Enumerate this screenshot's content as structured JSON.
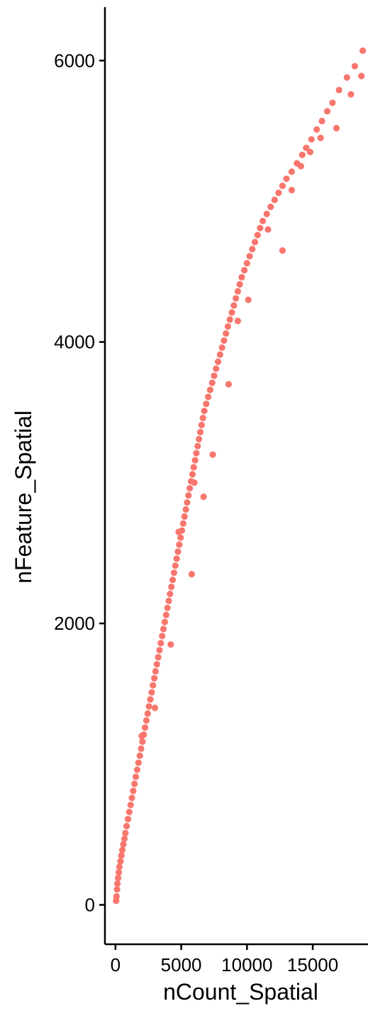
{
  "chart_data": {
    "type": "scatter",
    "title": "",
    "xlabel": "nCount_Spatial",
    "ylabel": "nFeature_Spatial",
    "xlim": [
      -800,
      19200
    ],
    "ylim": [
      -280,
      6380
    ],
    "x_ticks": [
      0,
      5000,
      10000,
      15000
    ],
    "x_tick_labels": [
      "0",
      "5000",
      "10000",
      "15000"
    ],
    "y_ticks": [
      0,
      2000,
      4000,
      6000
    ],
    "y_tick_labels": [
      "0",
      "2000",
      "4000",
      "6000"
    ],
    "grid": false,
    "legend": "none",
    "point_color": "#F8766D",
    "series": [
      {
        "points": [
          [
            50,
            30
          ],
          [
            80,
            60
          ],
          [
            120,
            110
          ],
          [
            150,
            150
          ],
          [
            200,
            190
          ],
          [
            250,
            230
          ],
          [
            300,
            270
          ],
          [
            380,
            310
          ],
          [
            450,
            350
          ],
          [
            520,
            390
          ],
          [
            600,
            430
          ],
          [
            680,
            470
          ],
          [
            760,
            510
          ],
          [
            850,
            560
          ],
          [
            950,
            610
          ],
          [
            1050,
            660
          ],
          [
            1150,
            710
          ],
          [
            1250,
            760
          ],
          [
            1350,
            810
          ],
          [
            1450,
            860
          ],
          [
            1550,
            910
          ],
          [
            1650,
            960
          ],
          [
            1750,
            1010
          ],
          [
            1850,
            1060
          ],
          [
            1950,
            1110
          ],
          [
            2050,
            1160
          ],
          [
            2150,
            1210
          ],
          [
            2250,
            1260
          ],
          [
            2350,
            1310
          ],
          [
            2450,
            1360
          ],
          [
            2550,
            1410
          ],
          [
            2650,
            1460
          ],
          [
            2750,
            1510
          ],
          [
            2850,
            1560
          ],
          [
            2950,
            1610
          ],
          [
            3050,
            1660
          ],
          [
            3150,
            1710
          ],
          [
            3250,
            1760
          ],
          [
            3350,
            1810
          ],
          [
            3450,
            1860
          ],
          [
            3550,
            1910
          ],
          [
            3650,
            1960
          ],
          [
            3750,
            2010
          ],
          [
            3850,
            2060
          ],
          [
            3950,
            2110
          ],
          [
            4050,
            2160
          ],
          [
            4150,
            2210
          ],
          [
            4250,
            2260
          ],
          [
            4350,
            2310
          ],
          [
            4450,
            2360
          ],
          [
            4550,
            2410
          ],
          [
            4650,
            2460
          ],
          [
            4750,
            2510
          ],
          [
            4850,
            2560
          ],
          [
            4950,
            2610
          ],
          [
            5050,
            2660
          ],
          [
            5150,
            2710
          ],
          [
            5250,
            2760
          ],
          [
            5350,
            2810
          ],
          [
            5450,
            2860
          ],
          [
            5550,
            2910
          ],
          [
            5650,
            2960
          ],
          [
            5750,
            3010
          ],
          [
            5850,
            3060
          ],
          [
            5950,
            3110
          ],
          [
            6050,
            3160
          ],
          [
            6150,
            3210
          ],
          [
            6250,
            3260
          ],
          [
            6350,
            3310
          ],
          [
            6450,
            3360
          ],
          [
            6550,
            3410
          ],
          [
            6650,
            3460
          ],
          [
            6750,
            3510
          ],
          [
            6900,
            3560
          ],
          [
            7050,
            3610
          ],
          [
            7200,
            3660
          ],
          [
            7350,
            3710
          ],
          [
            7500,
            3760
          ],
          [
            7650,
            3810
          ],
          [
            7800,
            3860
          ],
          [
            7950,
            3910
          ],
          [
            8100,
            3960
          ],
          [
            8250,
            4010
          ],
          [
            8400,
            4060
          ],
          [
            8550,
            4110
          ],
          [
            8700,
            4160
          ],
          [
            8850,
            4210
          ],
          [
            9000,
            4260
          ],
          [
            9150,
            4310
          ],
          [
            9300,
            4360
          ],
          [
            9450,
            4410
          ],
          [
            9600,
            4460
          ],
          [
            9800,
            4510
          ],
          [
            10000,
            4560
          ],
          [
            10200,
            4610
          ],
          [
            10400,
            4660
          ],
          [
            10600,
            4710
          ],
          [
            10800,
            4760
          ],
          [
            11000,
            4810
          ],
          [
            11200,
            4860
          ],
          [
            11500,
            4910
          ],
          [
            11800,
            4960
          ],
          [
            12100,
            5010
          ],
          [
            12400,
            5060
          ],
          [
            12700,
            5110
          ],
          [
            13000,
            5160
          ],
          [
            13400,
            5210
          ],
          [
            13800,
            5270
          ],
          [
            14200,
            5330
          ],
          [
            14500,
            5380
          ],
          [
            14900,
            5440
          ],
          [
            15300,
            5510
          ],
          [
            15700,
            5570
          ],
          [
            16100,
            5640
          ],
          [
            16500,
            5700
          ],
          [
            17000,
            5790
          ],
          [
            17600,
            5880
          ],
          [
            18200,
            5960
          ],
          [
            18800,
            6070
          ],
          [
            3000,
            1400
          ],
          [
            4200,
            1850
          ],
          [
            5800,
            2350
          ],
          [
            6700,
            2900
          ],
          [
            7400,
            3200
          ],
          [
            8600,
            3700
          ],
          [
            9300,
            4150
          ],
          [
            10100,
            4300
          ],
          [
            11600,
            4800
          ],
          [
            12700,
            4650
          ],
          [
            13400,
            5080
          ],
          [
            14100,
            5250
          ],
          [
            14800,
            5350
          ],
          [
            15600,
            5450
          ],
          [
            16800,
            5520
          ],
          [
            17900,
            5760
          ],
          [
            18700,
            5890
          ],
          [
            2000,
            1200
          ],
          [
            4800,
            2650
          ],
          [
            6000,
            3000
          ]
        ]
      }
    ]
  }
}
